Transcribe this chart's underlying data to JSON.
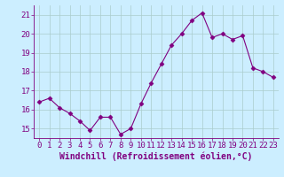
{
  "x": [
    0,
    1,
    2,
    3,
    4,
    5,
    6,
    7,
    8,
    9,
    10,
    11,
    12,
    13,
    14,
    15,
    16,
    17,
    18,
    19,
    20,
    21,
    22,
    23
  ],
  "y": [
    16.4,
    16.6,
    16.1,
    15.8,
    15.4,
    14.9,
    15.6,
    15.6,
    14.7,
    15.0,
    16.3,
    17.4,
    18.4,
    19.4,
    20.0,
    20.7,
    21.1,
    19.8,
    20.0,
    19.7,
    19.9,
    18.2,
    18.0,
    17.7
  ],
  "line_color": "#800080",
  "marker": "D",
  "marker_size": 2.5,
  "bg_color": "#cceeff",
  "grid_color": "#aacccc",
  "ylabel_ticks": [
    15,
    16,
    17,
    18,
    19,
    20,
    21
  ],
  "xlabel": "Windchill (Refroidissement éolien,°C)",
  "xlabel_fontsize": 7,
  "tick_fontsize": 6.5,
  "ylim": [
    14.5,
    21.5
  ],
  "xlim": [
    -0.5,
    23.5
  ]
}
